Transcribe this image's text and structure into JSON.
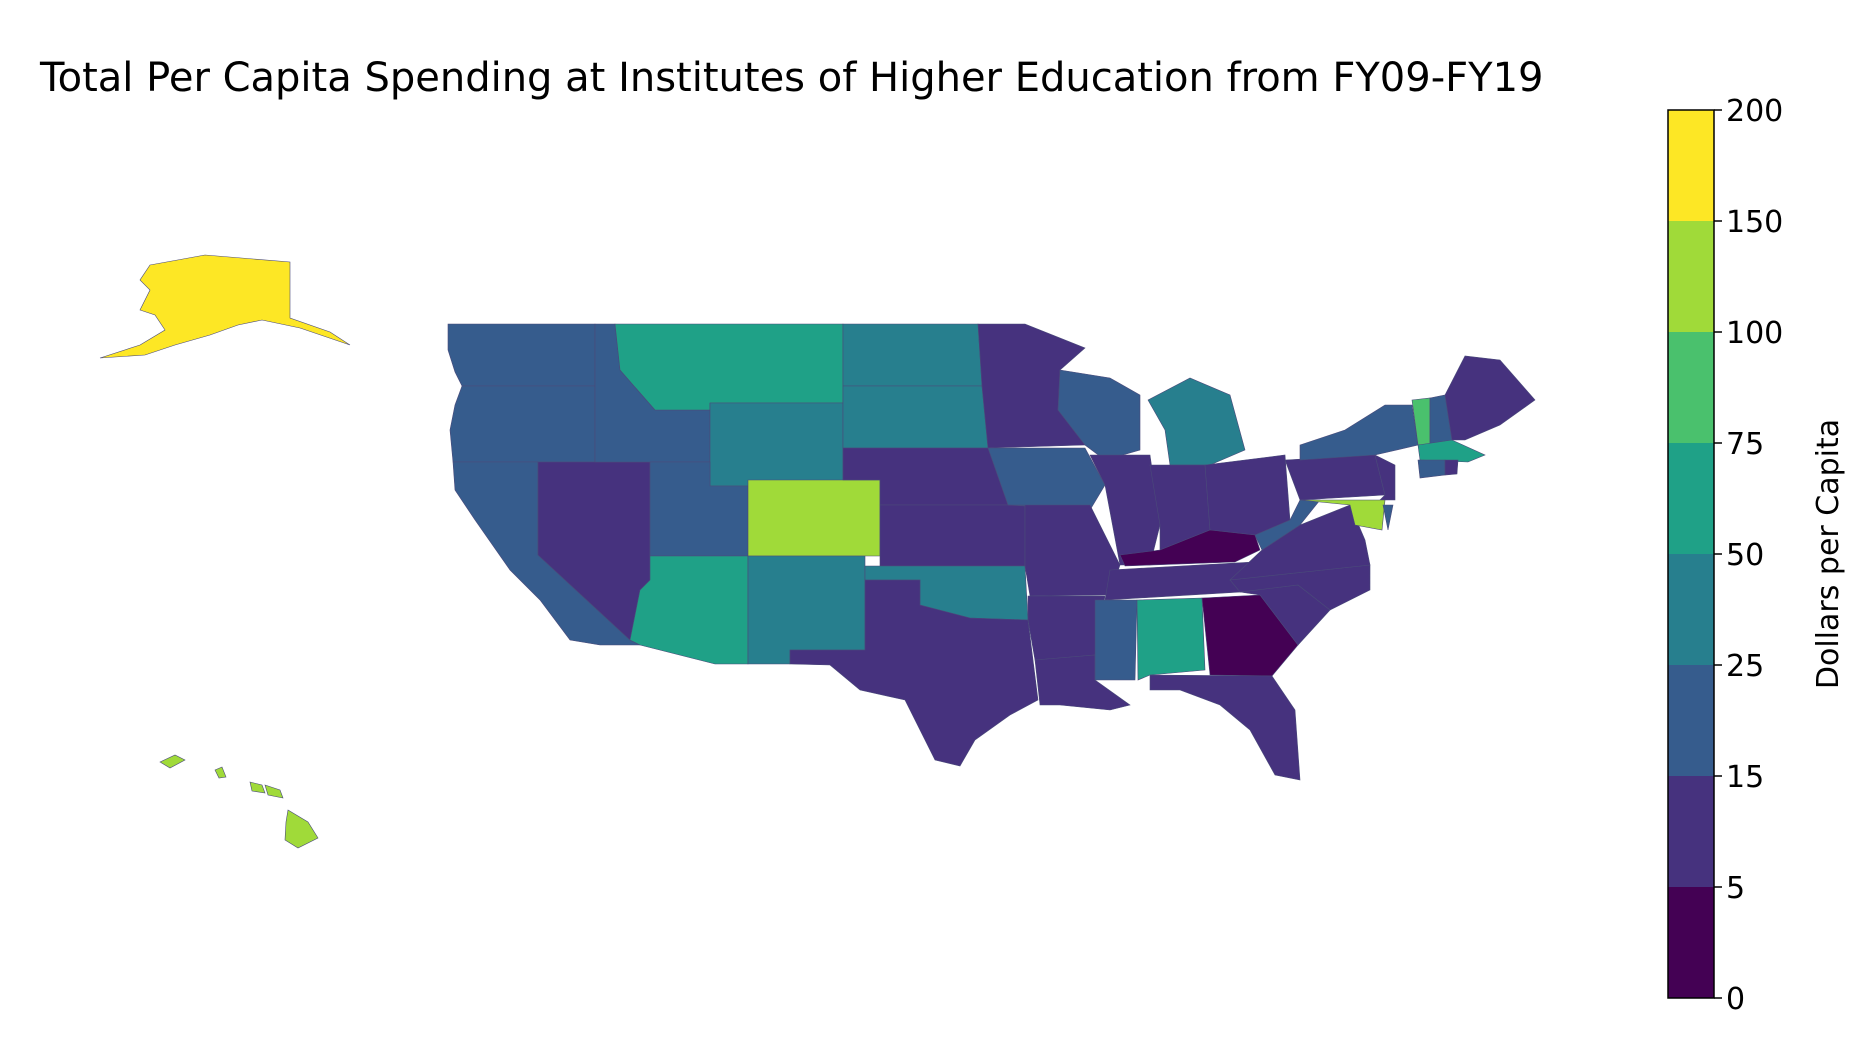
{
  "title": "Total Per Capita Spending at Institutes of Higher Education from FY09-FY19",
  "colorbar": {
    "label": "Dollars per Capita",
    "ticks": [
      "0",
      "5",
      "15",
      "25",
      "50",
      "75",
      "100",
      "150",
      "200"
    ],
    "bins": [
      {
        "range": "0-5",
        "color": "#440154"
      },
      {
        "range": "5-15",
        "color": "#46327e"
      },
      {
        "range": "15-25",
        "color": "#365c8d"
      },
      {
        "range": "25-50",
        "color": "#277f8e"
      },
      {
        "range": "50-75",
        "color": "#1fa187"
      },
      {
        "range": "75-100",
        "color": "#4ac16d"
      },
      {
        "range": "100-150",
        "color": "#a0da39"
      },
      {
        "range": "150-200",
        "color": "#fde725"
      }
    ]
  },
  "chart_data": {
    "type": "choropleth",
    "value_unit": "Dollars per Capita",
    "states": [
      {
        "state": "Alaska",
        "bin": "150-200"
      },
      {
        "state": "Hawaii",
        "bin": "100-150"
      },
      {
        "state": "Colorado",
        "bin": "100-150"
      },
      {
        "state": "Maryland",
        "bin": "100-150"
      },
      {
        "state": "Vermont",
        "bin": "75-100"
      },
      {
        "state": "Montana",
        "bin": "50-75"
      },
      {
        "state": "Arizona",
        "bin": "50-75"
      },
      {
        "state": "Alabama",
        "bin": "50-75"
      },
      {
        "state": "Massachusetts",
        "bin": "50-75"
      },
      {
        "state": "North Dakota",
        "bin": "25-50"
      },
      {
        "state": "South Dakota",
        "bin": "25-50"
      },
      {
        "state": "Wyoming",
        "bin": "25-50"
      },
      {
        "state": "New Mexico",
        "bin": "25-50"
      },
      {
        "state": "Oklahoma",
        "bin": "25-50"
      },
      {
        "state": "Michigan",
        "bin": "25-50"
      },
      {
        "state": "Washington",
        "bin": "15-25"
      },
      {
        "state": "Oregon",
        "bin": "15-25"
      },
      {
        "state": "Idaho",
        "bin": "15-25"
      },
      {
        "state": "California",
        "bin": "15-25"
      },
      {
        "state": "Utah",
        "bin": "15-25"
      },
      {
        "state": "Iowa",
        "bin": "15-25"
      },
      {
        "state": "Wisconsin",
        "bin": "15-25"
      },
      {
        "state": "Mississippi",
        "bin": "15-25"
      },
      {
        "state": "West Virginia",
        "bin": "15-25"
      },
      {
        "state": "New York",
        "bin": "15-25"
      },
      {
        "state": "New Hampshire",
        "bin": "15-25"
      },
      {
        "state": "Delaware",
        "bin": "15-25"
      },
      {
        "state": "Connecticut",
        "bin": "15-25"
      },
      {
        "state": "Nevada",
        "bin": "5-15"
      },
      {
        "state": "Nebraska",
        "bin": "5-15"
      },
      {
        "state": "Kansas",
        "bin": "5-15"
      },
      {
        "state": "Texas",
        "bin": "5-15"
      },
      {
        "state": "Minnesota",
        "bin": "5-15"
      },
      {
        "state": "Missouri",
        "bin": "5-15"
      },
      {
        "state": "Arkansas",
        "bin": "5-15"
      },
      {
        "state": "Louisiana",
        "bin": "5-15"
      },
      {
        "state": "Illinois",
        "bin": "5-15"
      },
      {
        "state": "Indiana",
        "bin": "5-15"
      },
      {
        "state": "Ohio",
        "bin": "5-15"
      },
      {
        "state": "Tennessee",
        "bin": "5-15"
      },
      {
        "state": "Florida",
        "bin": "5-15"
      },
      {
        "state": "South Carolina",
        "bin": "5-15"
      },
      {
        "state": "North Carolina",
        "bin": "5-15"
      },
      {
        "state": "Virginia",
        "bin": "5-15"
      },
      {
        "state": "Pennsylvania",
        "bin": "5-15"
      },
      {
        "state": "New Jersey",
        "bin": "5-15"
      },
      {
        "state": "Maine",
        "bin": "5-15"
      },
      {
        "state": "Rhode Island",
        "bin": "5-15"
      },
      {
        "state": "Kentucky",
        "bin": "0-5"
      },
      {
        "state": "Georgia",
        "bin": "0-5"
      }
    ]
  }
}
